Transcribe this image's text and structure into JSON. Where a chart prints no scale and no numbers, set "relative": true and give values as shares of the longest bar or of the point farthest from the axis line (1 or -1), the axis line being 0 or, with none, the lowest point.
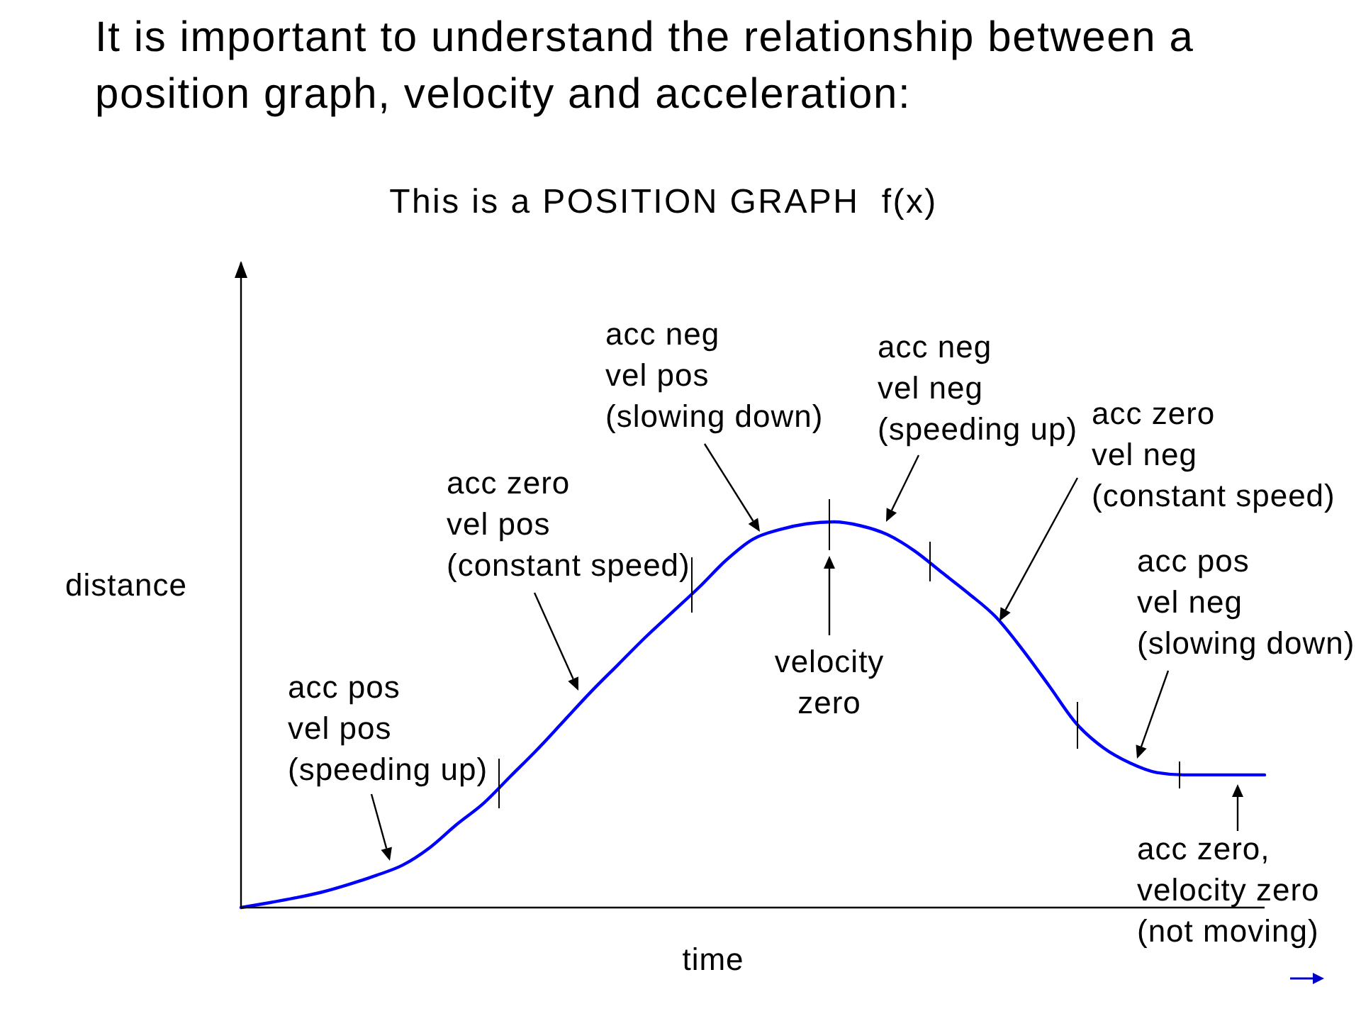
{
  "chart_data": {
    "type": "line",
    "title": "It is important to understand the relationship between a position graph, velocity and acceleration:",
    "subtitle": "This is a POSITION GRAPH  f(x)",
    "xlabel": "time",
    "ylabel": "distance",
    "relative": true,
    "categories": [
      null,
      null,
      null,
      null,
      null,
      null,
      null,
      null,
      null,
      null,
      null,
      null,
      null,
      null,
      null,
      null,
      null,
      null,
      null,
      null,
      null,
      null,
      null,
      null,
      null,
      null,
      null,
      null,
      null,
      null,
      null,
      null,
      null,
      null,
      null,
      null,
      null,
      null,
      null
    ],
    "series": [
      {
        "color": "#0000ff",
        "values": [
          0,
          0.012,
          0.025,
          0.04,
          0.06,
          0.083,
          0.11,
          0.155,
          0.215,
          0.27,
          0.34,
          0.41,
          0.485,
          0.56,
          0.63,
          0.7,
          0.765,
          0.83,
          0.9,
          0.955,
          0.98,
          0.995,
          1,
          0.99,
          0.967,
          0.925,
          0.87,
          0.815,
          0.755,
          0.67,
          0.575,
          0.478,
          0.415,
          0.375,
          0.35,
          0.344,
          0.344,
          0.344,
          0.344
        ]
      }
    ],
    "annotations": [
      "acc pos\nvel pos\n(speeding up)",
      "acc zero\nvel pos\n(constant speed)",
      "acc neg\nvel pos\n(slowing down)",
      "velocity\nzero",
      "acc neg\nvel neg\n(speeding up)",
      "acc zero\nvel neg\n(constant speed)",
      "acc pos\nvel neg\n(slowing down)",
      "acc zero,\nvelocity zero\n(not moving)"
    ],
    "legend": false,
    "grid": false,
    "tick_labels": false,
    "marker": "none",
    "line_style": "solid"
  }
}
